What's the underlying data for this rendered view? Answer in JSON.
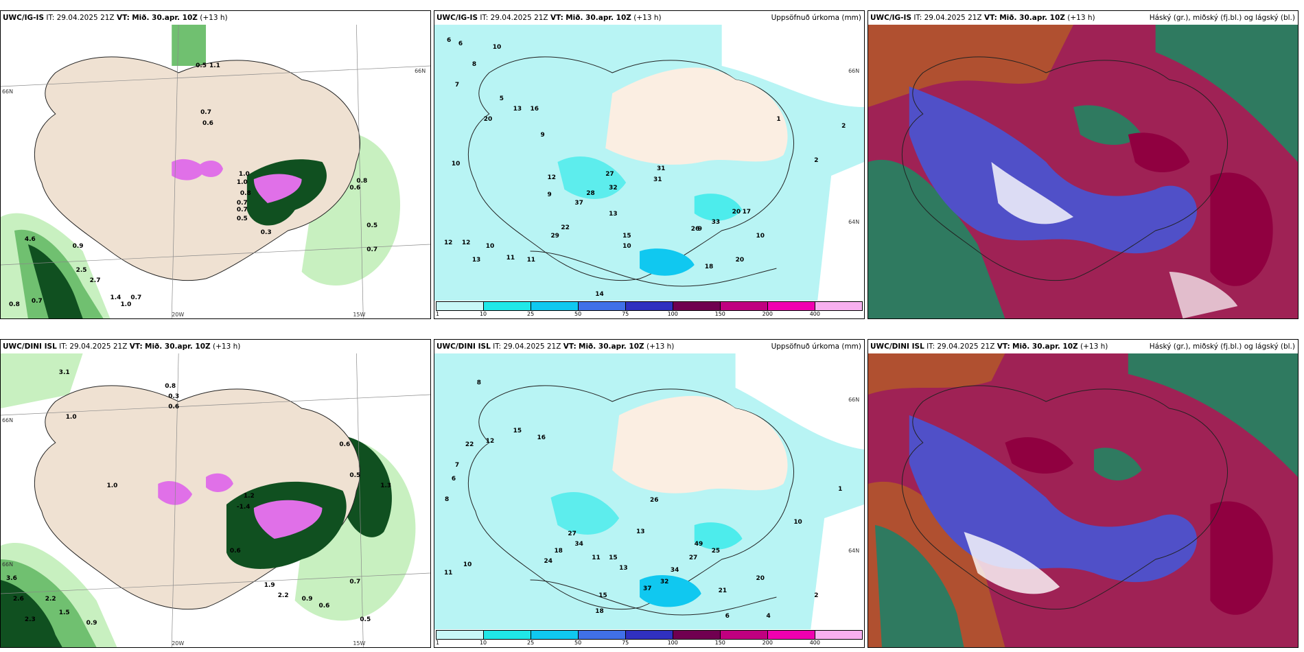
{
  "panels": [
    {
      "id": "r1c1",
      "model": "UWC/IG-IS",
      "it_label": "IT:",
      "it_value": "29.04.2025 21Z",
      "vt_label": "VT:",
      "vt_value": "Mið. 30.apr. 10Z",
      "lead": "(+13 h)",
      "right_title": "",
      "lat_labels": [
        "66N",
        "66N"
      ],
      "lon_labels": [
        "20W",
        "15W"
      ],
      "values": [
        "0.5",
        "1.1",
        "0.7",
        "0.6",
        "4.6",
        "0.8",
        "0.9",
        "2.5",
        "2.7",
        "0.7",
        "1.4",
        "1.0",
        "0.7",
        "1.0",
        "0.7",
        "0.8",
        "0.3",
        "0.5",
        "0.6",
        "0.7",
        "0.5",
        "0.7",
        "0.8",
        "1.0"
      ]
    },
    {
      "id": "r1c2",
      "model": "UWC/IG-IS",
      "it_label": "IT:",
      "it_value": "29.04.2025 21Z",
      "vt_label": "VT:",
      "vt_value": "Mið. 30.apr. 10Z",
      "lead": "(+13 h)",
      "right_title": "Uppsöfnuð úrkoma (mm)",
      "lat_labels": [
        "66N",
        "64N"
      ],
      "lon_labels": [],
      "values": [
        "6",
        "6",
        "10",
        "8",
        "7",
        "5",
        "13",
        "16",
        "20",
        "9",
        "10",
        "12",
        "9",
        "31",
        "27",
        "32",
        "28",
        "37",
        "13",
        "22",
        "29",
        "12",
        "12",
        "13",
        "10",
        "11",
        "11",
        "15",
        "10",
        "14",
        "18",
        "20",
        "33",
        "26",
        "20",
        "17",
        "10",
        "2",
        "1",
        "2",
        "9",
        "31"
      ]
    },
    {
      "id": "r1c3",
      "model": "UWC/IG-IS",
      "it_label": "IT:",
      "it_value": "29.04.2025 21Z",
      "vt_label": "VT:",
      "vt_value": "Mið. 30.apr. 10Z",
      "lead": "(+13 h)",
      "right_title": "Háský (gr.), miðský (fj.bl.) og lágský (bl.)",
      "lat_labels": [],
      "lon_labels": [],
      "values": []
    },
    {
      "id": "r2c1",
      "model": "UWC/DINI ISL",
      "it_label": "IT:",
      "it_value": "29.04.2025 21Z",
      "vt_label": "VT:",
      "vt_value": "Mið. 30.apr. 10Z",
      "lead": "(+13 h)",
      "right_title": "",
      "lat_labels": [
        "66N",
        "66N"
      ],
      "lon_labels": [
        "20W",
        "15W"
      ],
      "values": [
        "3.1",
        "0.8",
        "0.3",
        "0.6",
        "1.0",
        "1.0",
        "1.2",
        "-1.4",
        "3.6",
        "2.6",
        "2.2",
        "2.3",
        "1.5",
        "0.9",
        "1.9",
        "2.2",
        "0.9",
        "0.6",
        "0.7",
        "0.5",
        "0.6",
        "0.5",
        "1.3",
        "0.6"
      ]
    },
    {
      "id": "r2c2",
      "model": "UWC/DINI ISL",
      "it_label": "IT:",
      "it_value": "29.04.2025 21Z",
      "vt_label": "VT:",
      "vt_value": "Mið. 30.apr. 10Z",
      "lead": "(+13 h)",
      "right_title": "Uppsöfnuð úrkoma (mm)",
      "lat_labels": [
        "66N",
        "64N"
      ],
      "lon_labels": [],
      "values": [
        "8",
        "12",
        "15",
        "16",
        "22",
        "7",
        "6",
        "8",
        "26",
        "27",
        "34",
        "18",
        "24",
        "13",
        "11",
        "15",
        "10",
        "11",
        "13",
        "37",
        "18",
        "15",
        "32",
        "34",
        "27",
        "49",
        "25",
        "20",
        "21",
        "10",
        "2",
        "1",
        "4",
        "6"
      ]
    },
    {
      "id": "r2c3",
      "model": "UWC/DINI ISL",
      "it_label": "IT:",
      "it_value": "29.04.2025 21Z",
      "vt_label": "VT:",
      "vt_value": "Mið. 30.apr. 10Z",
      "lead": "(+13 h)",
      "right_title": "Háský (gr.), miðský (fj.bl.) og lágský (bl.)",
      "lat_labels": [],
      "lon_labels": [],
      "values": []
    }
  ],
  "colorbar": {
    "labels": [
      "1",
      "10",
      "25",
      "50",
      "75",
      "100",
      "150",
      "200",
      "400"
    ],
    "colors": [
      "#c8f8f8",
      "#20e8e8",
      "#10c8f0",
      "#4070e8",
      "#3030c0",
      "#700050",
      "#c00080",
      "#f000b0",
      "#f8b0f0"
    ]
  },
  "colors": {
    "land": "#efe1d2",
    "sea": "#ffffff",
    "precip_sea": "#b8f4f4",
    "wind_light": "#c8f0c0",
    "wind_mid": "#70c070",
    "wind_dark": "#105020",
    "wind_pink": "#e070e8",
    "cloud_high": "#2f7a60",
    "cloud_mid": "#5050c8",
    "cloud_low": "#900040",
    "cloud_brown": "#b05030"
  }
}
